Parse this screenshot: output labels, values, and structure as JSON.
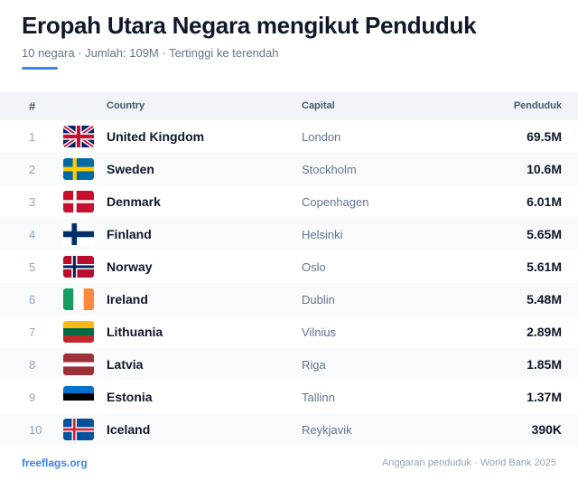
{
  "header": {
    "title": "Eropah Utara Negara mengikut Penduduk",
    "subtitle": "10 negara · Jumlah: 109M · Tertinggi ke terendah"
  },
  "table": {
    "columns": {
      "num": "#",
      "country": "Country",
      "capital": "Capital",
      "population": "Penduduk"
    },
    "rows": [
      {
        "rank": "1",
        "flag": "uk-flag-icon",
        "country": "United Kingdom",
        "capital": "London",
        "population": "69.5M"
      },
      {
        "rank": "2",
        "flag": "sweden-flag-icon",
        "country": "Sweden",
        "capital": "Stockholm",
        "population": "10.6M"
      },
      {
        "rank": "3",
        "flag": "denmark-flag-icon",
        "country": "Denmark",
        "capital": "Copenhagen",
        "population": "6.01M"
      },
      {
        "rank": "4",
        "flag": "finland-flag-icon",
        "country": "Finland",
        "capital": "Helsinki",
        "population": "5.65M"
      },
      {
        "rank": "5",
        "flag": "norway-flag-icon",
        "country": "Norway",
        "capital": "Oslo",
        "population": "5.61M"
      },
      {
        "rank": "6",
        "flag": "ireland-flag-icon",
        "country": "Ireland",
        "capital": "Dublin",
        "population": "5.48M"
      },
      {
        "rank": "7",
        "flag": "lithuania-flag-icon",
        "country": "Lithuania",
        "capital": "Vilnius",
        "population": "2.89M"
      },
      {
        "rank": "8",
        "flag": "latvia-flag-icon",
        "country": "Latvia",
        "capital": "Riga",
        "population": "1.85M"
      },
      {
        "rank": "9",
        "flag": "estonia-flag-icon",
        "country": "Estonia",
        "capital": "Tallinn",
        "population": "1.37M"
      },
      {
        "rank": "10",
        "flag": "iceland-flag-icon",
        "country": "Iceland",
        "capital": "Reykjavik",
        "population": "390K"
      }
    ]
  },
  "footer": {
    "link": "freeflags.org",
    "source": "Anggaran penduduk · World Bank 2025"
  },
  "colors": {
    "accent": "#3b82f6",
    "title": "#0f172a",
    "muted": "#64748b",
    "header_bg": "#f1f5f9",
    "alt_row_bg": "#f8fafc"
  }
}
